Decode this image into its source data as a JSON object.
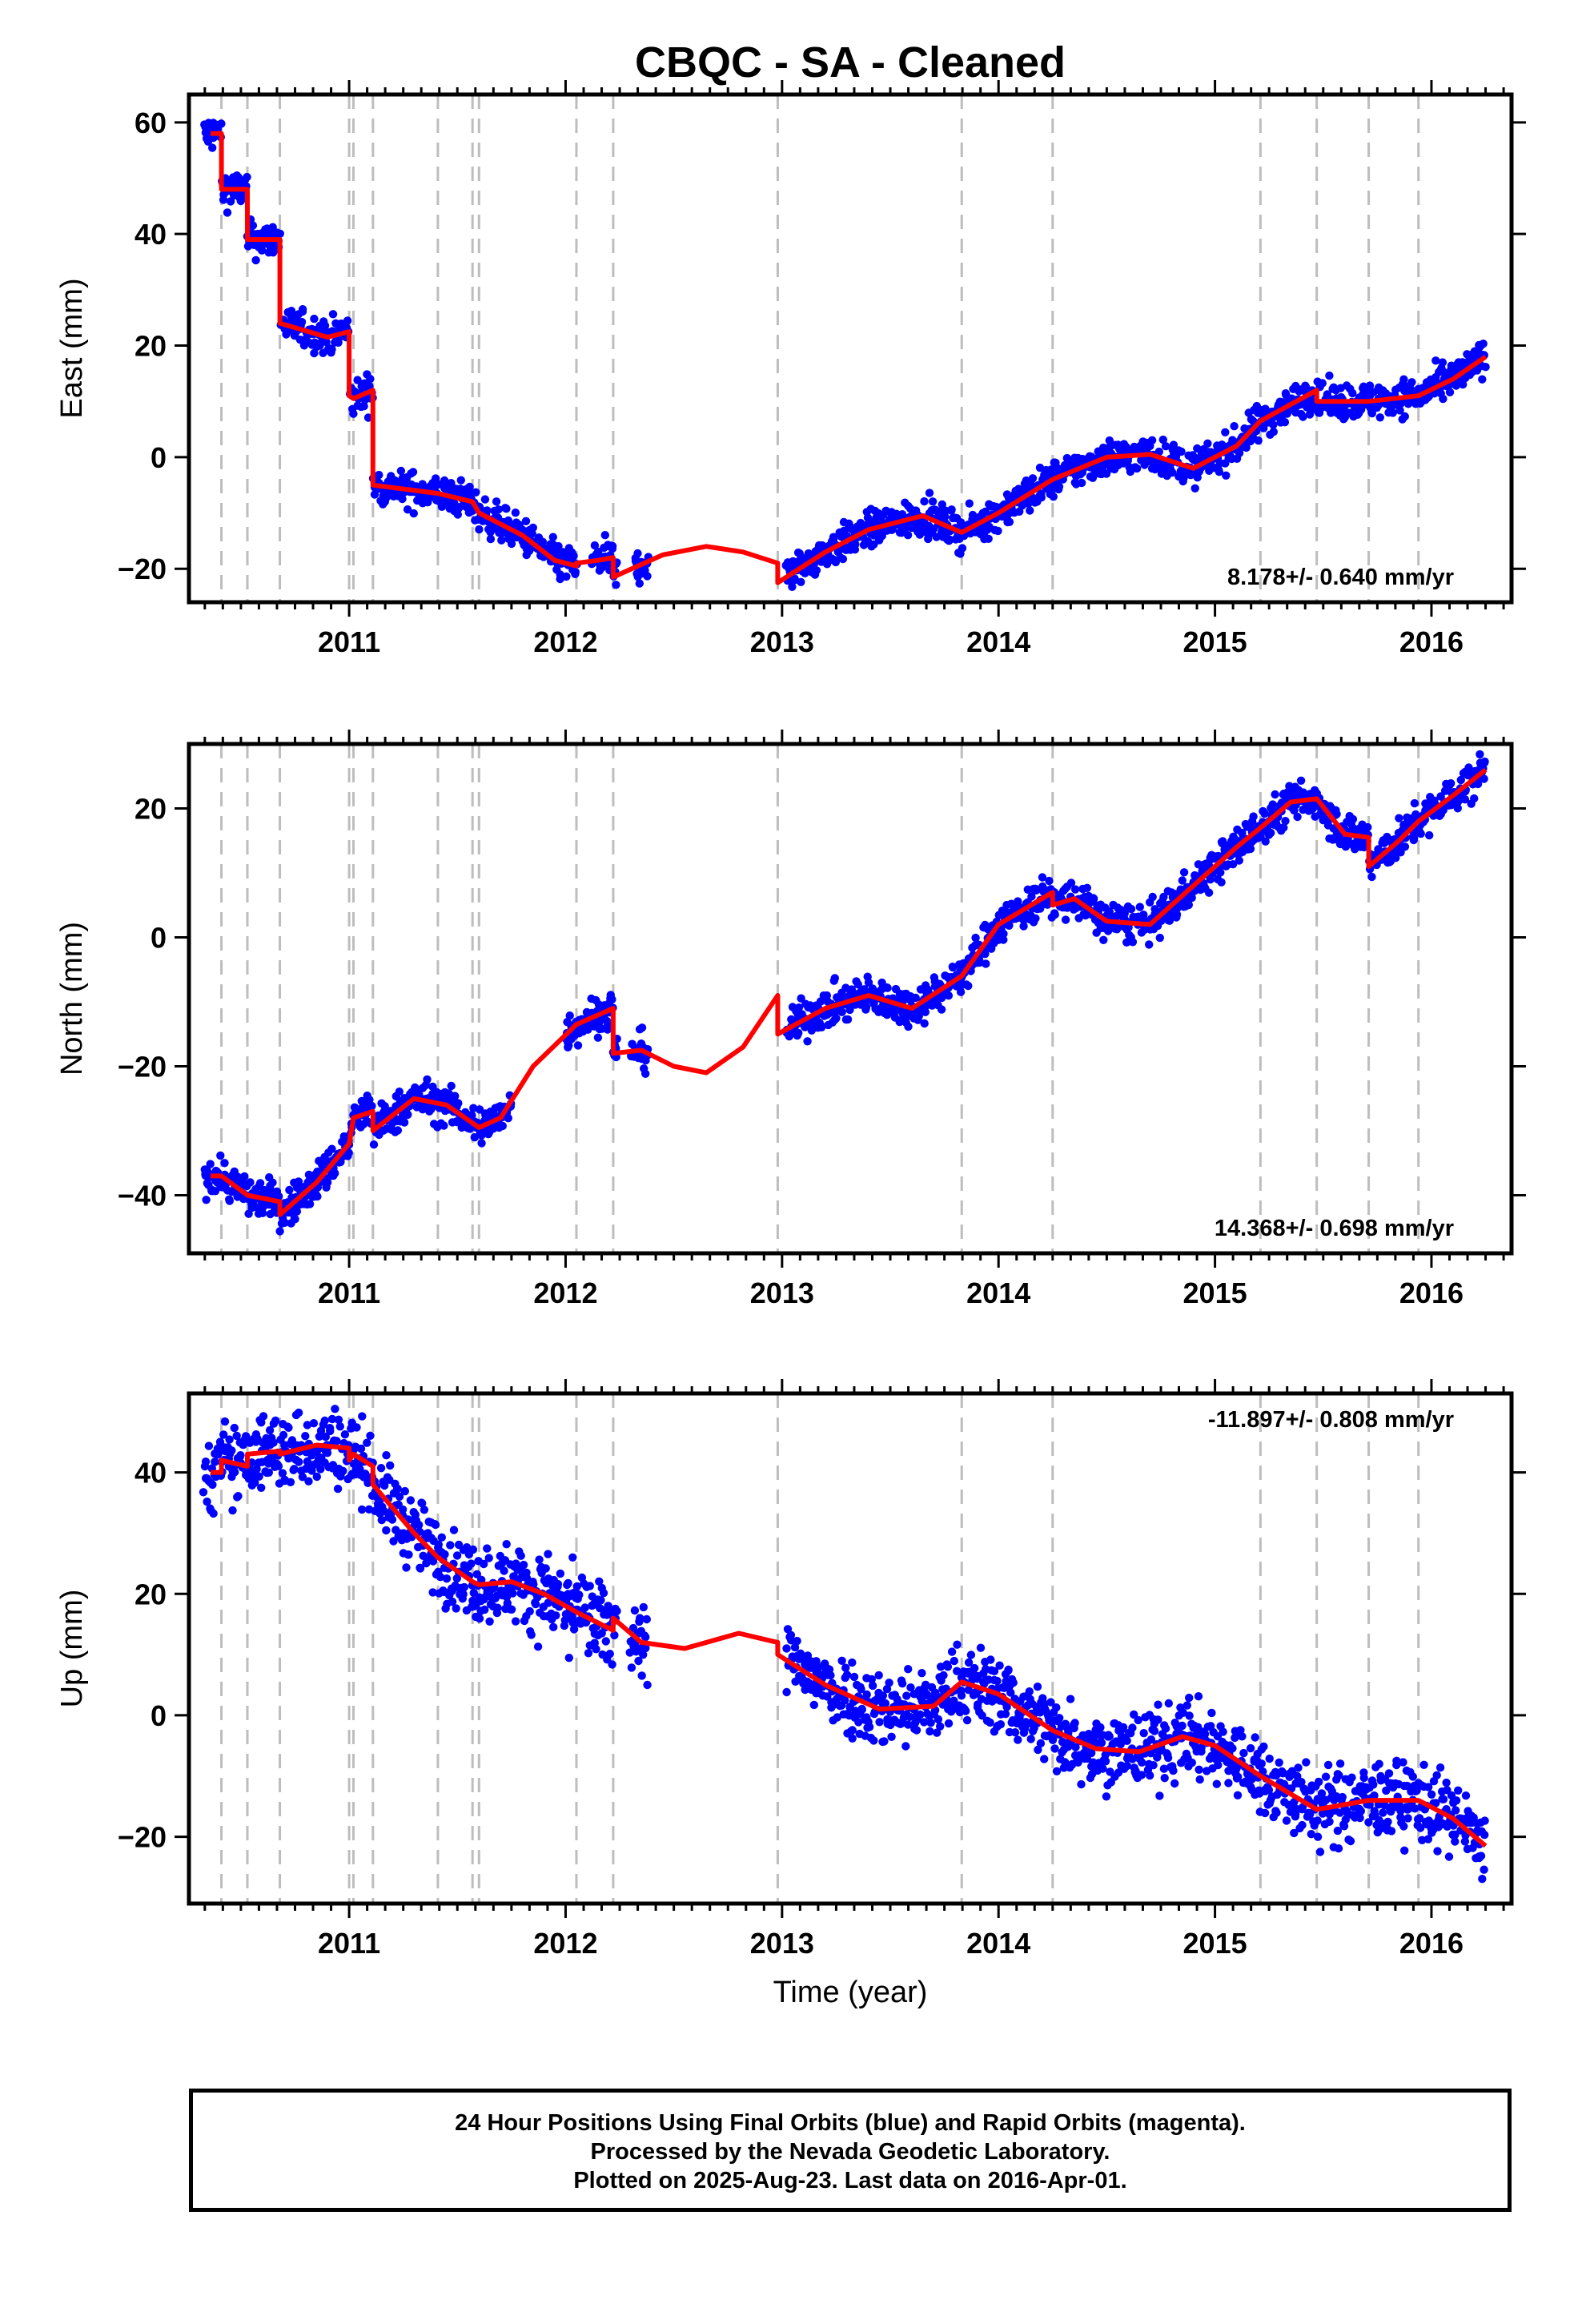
{
  "title": "CBQC  - SA - Cleaned",
  "xaxis": {
    "label": "Time (year)",
    "range": [
      2010.26,
      2016.37
    ],
    "tick_labels": [
      "2011",
      "2012",
      "2013",
      "2014",
      "2015",
      "2016"
    ]
  },
  "event_lines": [
    2010.41,
    2010.53,
    2010.68,
    2011.0,
    2011.02,
    2011.11,
    2011.41,
    2011.57,
    2011.6,
    2012.05,
    2012.22,
    2012.98,
    2013.83,
    2014.25,
    2015.21,
    2015.47,
    2015.71,
    2015.94
  ],
  "colors": {
    "data": "#0000ff",
    "model": "#ff0000",
    "event_line": "#bdbdbd",
    "frame": "#000000"
  },
  "footer": {
    "line1": "24 Hour Positions Using Final Orbits (blue) and Rapid Orbits (magenta).",
    "line2": "Processed by the Nevada Geodetic Laboratory.",
    "line3": "Plotted on 2025-Aug-23. Last data on 2016-Apr-01."
  },
  "chart_data": [
    {
      "type": "scatter",
      "component": "East",
      "ylabel": "East (mm)",
      "ylim": [
        -26,
        65
      ],
      "yticks": [
        -20,
        0,
        20,
        40,
        60
      ],
      "rate_label": "8.178+/- 0.640 mm/yr",
      "data_segments": [
        [
          2010.33,
          2012.05
        ],
        [
          2012.12,
          2012.24
        ],
        [
          2012.32,
          2012.38
        ],
        [
          2013.02,
          2016.25
        ]
      ],
      "data_spread": 1.6,
      "model": {
        "x": [
          2010.36,
          2010.41,
          2010.41,
          2010.53,
          2010.53,
          2010.68,
          2010.68,
          2010.9,
          2011.0,
          2011.0,
          2011.02,
          2011.11,
          2011.11,
          2011.41,
          2011.57,
          2011.6,
          2011.8,
          2011.95,
          2012.05,
          2012.05,
          2012.15,
          2012.22,
          2012.22,
          2012.45,
          2012.65,
          2012.82,
          2012.98,
          2012.98,
          2013.2,
          2013.4,
          2013.65,
          2013.83,
          2014.0,
          2014.25,
          2014.5,
          2014.7,
          2014.9,
          2015.1,
          2015.21,
          2015.47,
          2015.47,
          2015.71,
          2015.94,
          2016.1,
          2016.25
        ],
        "y": [
          58,
          58,
          48,
          48,
          39,
          39,
          24,
          21.5,
          22.5,
          11,
          10.5,
          12,
          -5,
          -6.5,
          -8,
          -10,
          -14,
          -18.5,
          -19.5,
          -19,
          -18.5,
          -18,
          -21.5,
          -17.5,
          -16,
          -17,
          -19,
          -22.5,
          -17,
          -13,
          -10.5,
          -13.5,
          -10,
          -4,
          0,
          0.5,
          -2,
          2,
          6.5,
          12,
          10,
          10,
          11,
          14,
          18
        ]
      }
    },
    {
      "type": "scatter",
      "component": "North",
      "ylabel": "North (mm)",
      "ylim": [
        -49,
        30
      ],
      "yticks": [
        -40,
        -20,
        0,
        20
      ],
      "rate_label": "14.368+/- 0.698 mm/yr",
      "data_segments": [
        [
          2010.33,
          2011.75
        ],
        [
          2012.0,
          2012.24
        ],
        [
          2012.3,
          2012.38
        ],
        [
          2013.02,
          2016.25
        ]
      ],
      "data_spread": 1.5,
      "model": {
        "x": [
          2010.36,
          2010.41,
          2010.53,
          2010.68,
          2010.68,
          2010.85,
          2011.0,
          2011.02,
          2011.11,
          2011.11,
          2011.3,
          2011.45,
          2011.6,
          2011.7,
          2011.85,
          2012.05,
          2012.22,
          2012.22,
          2012.35,
          2012.5,
          2012.65,
          2012.82,
          2012.98,
          2012.98,
          2013.2,
          2013.4,
          2013.6,
          2013.83,
          2014.0,
          2014.25,
          2014.25,
          2014.35,
          2014.5,
          2014.7,
          2014.9,
          2015.1,
          2015.21,
          2015.35,
          2015.47,
          2015.6,
          2015.71,
          2015.71,
          2015.85,
          2015.94,
          2016.1,
          2016.25
        ],
        "y": [
          -37,
          -37,
          -40,
          -41,
          -43,
          -38,
          -32,
          -28,
          -27,
          -30,
          -25,
          -26,
          -29.5,
          -28,
          -20,
          -13.5,
          -11,
          -18,
          -17.5,
          -20,
          -21,
          -17,
          -9,
          -15,
          -11,
          -9,
          -11,
          -6,
          2,
          7,
          5,
          6,
          2.5,
          2,
          8,
          14,
          17,
          21,
          21.5,
          16,
          15.5,
          11,
          15,
          18,
          22,
          26
        ]
      }
    },
    {
      "type": "scatter",
      "component": "Up",
      "ylabel": "Up (mm)",
      "ylim": [
        -31,
        53
      ],
      "yticks": [
        -20,
        0,
        20,
        40
      ],
      "rate_label": "-11.897+/- 0.808 mm/yr",
      "data_segments": [
        [
          2010.33,
          2012.05
        ],
        [
          2012.0,
          2012.24
        ],
        [
          2012.3,
          2012.38
        ],
        [
          2013.02,
          2016.25
        ]
      ],
      "data_spread": 3.2,
      "model": {
        "x": [
          2010.36,
          2010.41,
          2010.41,
          2010.53,
          2010.53,
          2010.68,
          2010.68,
          2010.85,
          2011.0,
          2011.0,
          2011.02,
          2011.11,
          2011.11,
          2011.3,
          2011.41,
          2011.57,
          2011.6,
          2011.75,
          2011.9,
          2012.05,
          2012.22,
          2012.22,
          2012.35,
          2012.55,
          2012.8,
          2012.98,
          2012.98,
          2013.2,
          2013.45,
          2013.7,
          2013.83,
          2014.0,
          2014.25,
          2014.45,
          2014.65,
          2014.85,
          2015.0,
          2015.21,
          2015.47,
          2015.71,
          2015.94,
          2016.1,
          2016.25
        ],
        "y": [
          40,
          40,
          42,
          41,
          43,
          43.5,
          43,
          44.5,
          44,
          42,
          43,
          41,
          38,
          30,
          26,
          22,
          21.5,
          22,
          20,
          17,
          14,
          16,
          12,
          11,
          13.5,
          12,
          10,
          5,
          1,
          1.5,
          5.5,
          3.5,
          -2.5,
          -5.5,
          -6,
          -3.5,
          -5,
          -10,
          -15.5,
          -14,
          -14,
          -17,
          -21.5
        ]
      }
    }
  ]
}
